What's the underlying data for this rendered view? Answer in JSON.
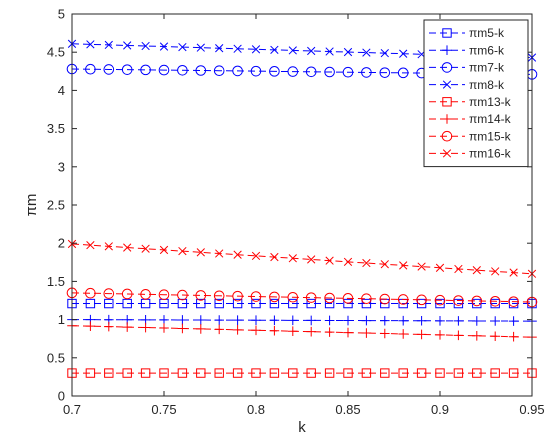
{
  "chart_data": {
    "type": "line",
    "title": "",
    "xlabel": "k",
    "ylabel": "πm",
    "xlim": [
      0.7,
      0.95
    ],
    "ylim": [
      0,
      5
    ],
    "xticks": [
      "0.7",
      "0.75",
      "0.8",
      "0.85",
      "0.9",
      "0.95"
    ],
    "yticks": [
      "0",
      "0.5",
      "1",
      "1.5",
      "2",
      "2.5",
      "3",
      "3.5",
      "4",
      "4.5",
      "5"
    ],
    "grid": false,
    "legend_position": "top-right",
    "x": [
      0.7,
      0.71,
      0.72,
      0.73,
      0.74,
      0.75,
      0.76,
      0.77,
      0.78,
      0.79,
      0.8,
      0.81,
      0.82,
      0.83,
      0.84,
      0.85,
      0.86,
      0.87,
      0.88,
      0.89,
      0.9,
      0.91,
      0.92,
      0.93,
      0.94,
      0.95
    ],
    "series": [
      {
        "name": "πm5-k",
        "color": "#0000ff",
        "marker": "square",
        "start": 1.21,
        "end": 1.21
      },
      {
        "name": "πm6-k",
        "color": "#0000ff",
        "marker": "plus",
        "start": 1.0,
        "end": 0.98
      },
      {
        "name": "πm7-k",
        "color": "#0000ff",
        "marker": "circle",
        "start": 4.28,
        "end": 4.21
      },
      {
        "name": "πm8-k",
        "color": "#0000ff",
        "marker": "x",
        "start": 4.61,
        "end": 4.43
      },
      {
        "name": "πm13-k",
        "color": "#ff0000",
        "marker": "square",
        "start": 0.3,
        "end": 0.3
      },
      {
        "name": "πm14-k",
        "color": "#ff0000",
        "marker": "plus",
        "start": 0.92,
        "end": 0.77
      },
      {
        "name": "πm15-k",
        "color": "#ff0000",
        "marker": "circle",
        "start": 1.35,
        "end": 1.23
      },
      {
        "name": "πm16-k",
        "color": "#ff0000",
        "marker": "x",
        "start": 1.99,
        "end": 1.6
      }
    ]
  }
}
